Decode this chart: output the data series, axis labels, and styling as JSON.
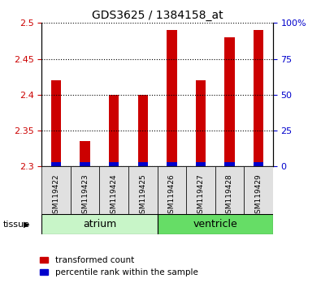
{
  "title": "GDS3625 / 1384158_at",
  "samples": [
    "GSM119422",
    "GSM119423",
    "GSM119424",
    "GSM119425",
    "GSM119426",
    "GSM119427",
    "GSM119428",
    "GSM119429"
  ],
  "transformed_counts": [
    2.42,
    2.335,
    2.4,
    2.4,
    2.49,
    2.42,
    2.48,
    2.49
  ],
  "ylim_left": [
    2.3,
    2.5
  ],
  "ylim_right": [
    0,
    100
  ],
  "yticks_left": [
    2.3,
    2.35,
    2.4,
    2.45,
    2.5
  ],
  "yticks_right": [
    0,
    25,
    50,
    75,
    100
  ],
  "ytick_labels_right": [
    "0",
    "25",
    "50",
    "75",
    "100%"
  ],
  "bar_base": 2.3,
  "tissue_groups": [
    {
      "label": "atrium",
      "samples": [
        0,
        1,
        2,
        3
      ],
      "color": "#c8f5c8"
    },
    {
      "label": "ventricle",
      "samples": [
        4,
        5,
        6,
        7
      ],
      "color": "#66dd66"
    }
  ],
  "red_color": "#cc0000",
  "blue_color": "#0000cc",
  "bar_width": 0.35,
  "axis_label_color_left": "#cc0000",
  "axis_label_color_right": "#0000cc",
  "perc_pct": 3
}
